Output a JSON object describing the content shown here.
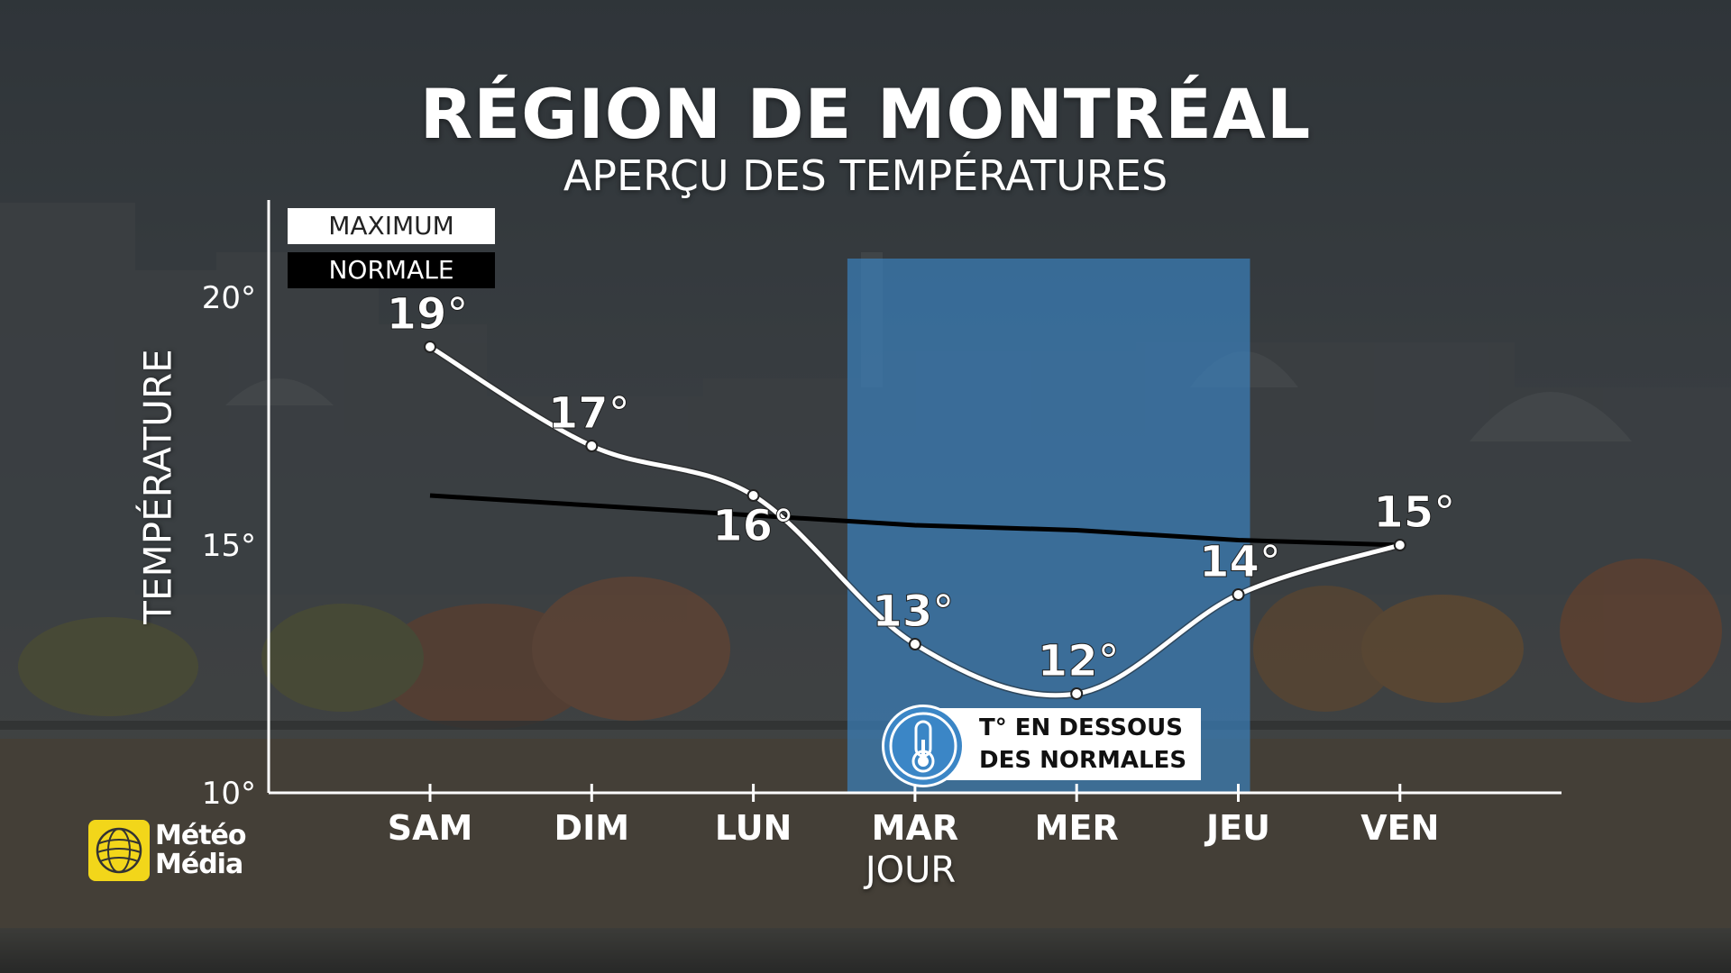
{
  "title": "RÉGION DE MONTRÉAL",
  "subtitle": "APERÇU DES TEMPÉRATURES",
  "legend": {
    "maximum": "MAXIMUM",
    "normale": "NORMALE"
  },
  "callout": {
    "line1": "T° EN DESSOUS",
    "line2": "DES NORMALES",
    "icon": "thermometer-icon"
  },
  "logo": {
    "line1": "Météo",
    "line2": "Média"
  },
  "colors": {
    "highlight": "#3b86c6",
    "logo": "#f2d61a",
    "max_line": "#ffffff",
    "normal_line": "#000000"
  },
  "chart_data": {
    "type": "line",
    "xlabel": "JOUR",
    "ylabel": "TEMPÉRATURE",
    "categories": [
      "SAM",
      "DIM",
      "LUN",
      "MAR",
      "MER",
      "JEU",
      "VEN"
    ],
    "yticks": [
      "10°",
      "15°",
      "20°"
    ],
    "ylim": [
      10,
      20
    ],
    "series": [
      {
        "name": "MAXIMUM",
        "values": [
          19,
          17,
          16,
          13,
          12,
          14,
          15
        ],
        "labels": [
          "19°",
          "17°",
          "16°",
          "13°",
          "12°",
          "14°",
          "15°"
        ]
      },
      {
        "name": "NORMALE",
        "values": [
          16.0,
          15.8,
          15.6,
          15.4,
          15.3,
          15.1,
          15.0
        ]
      }
    ],
    "highlight_range": [
      "MAR",
      "JEU"
    ]
  }
}
